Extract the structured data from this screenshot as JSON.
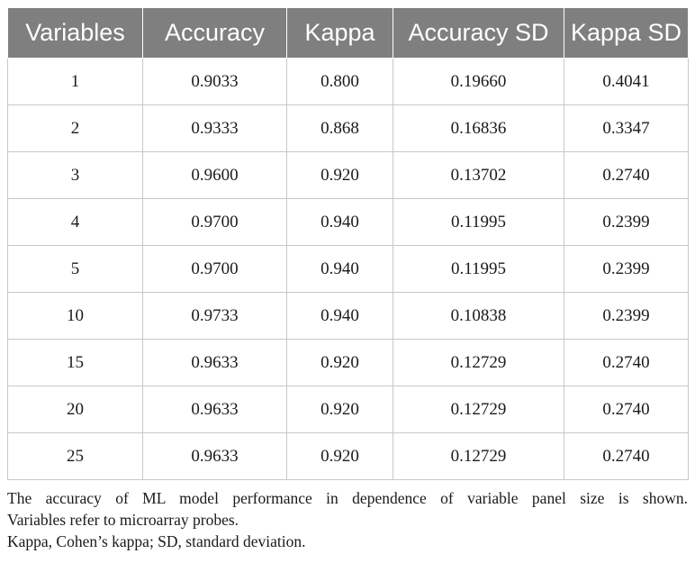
{
  "table": {
    "headers": [
      "Variables",
      "Accuracy",
      "Kappa",
      "Accuracy SD",
      "Kappa SD"
    ],
    "rows": [
      [
        "1",
        "0.9033",
        "0.800",
        "0.19660",
        "0.4041"
      ],
      [
        "2",
        "0.9333",
        "0.868",
        "0.16836",
        "0.3347"
      ],
      [
        "3",
        "0.9600",
        "0.920",
        "0.13702",
        "0.2740"
      ],
      [
        "4",
        "0.9700",
        "0.940",
        "0.11995",
        "0.2399"
      ],
      [
        "5",
        "0.9700",
        "0.940",
        "0.11995",
        "0.2399"
      ],
      [
        "10",
        "0.9733",
        "0.940",
        "0.10838",
        "0.2399"
      ],
      [
        "15",
        "0.9633",
        "0.920",
        "0.12729",
        "0.2740"
      ],
      [
        "20",
        "0.9633",
        "0.920",
        "0.12729",
        "0.2740"
      ],
      [
        "25",
        "0.9633",
        "0.920",
        "0.12729",
        "0.2740"
      ]
    ]
  },
  "footnotes": {
    "caption_line1": "The accuracy of ML model performance in dependence of variable panel size is shown.",
    "caption_line2": "Variables refer to microarray probes.",
    "abbreviations": "Kappa, Cohen’s kappa; SD, standard deviation."
  },
  "colors": {
    "header_bg": "#7f7f7f",
    "header_text": "#ffffff",
    "grid_line": "#c8c8c8"
  }
}
